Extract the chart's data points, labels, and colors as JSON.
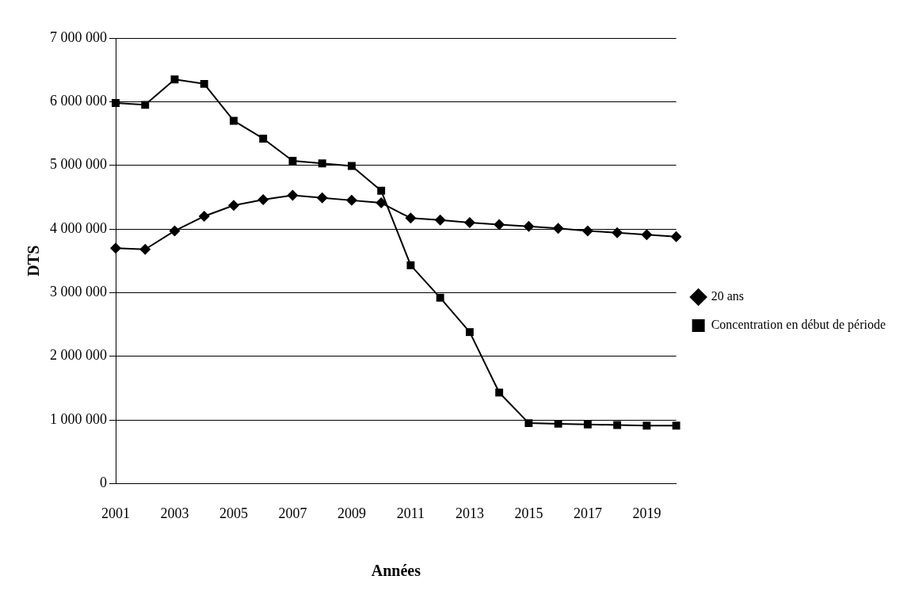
{
  "chart_data": {
    "type": "line",
    "xlabel": "Années",
    "ylabel": "DTS",
    "categories": [
      "2001",
      null,
      "2003",
      null,
      "2005",
      null,
      "2007",
      null,
      "2009",
      null,
      "2011",
      null,
      "2013",
      null,
      "2015",
      null,
      "2017",
      null,
      "2019",
      null
    ],
    "series": [
      {
        "name": "20 ans",
        "color": "#000000",
        "marker": "diamond",
        "values": [
          3700000,
          3680000,
          3970000,
          4200000,
          4370000,
          4460000,
          4530000,
          4490000,
          4450000,
          4410000,
          4170000,
          4140000,
          4100000,
          4070000,
          4040000,
          4010000,
          3970000,
          3940000,
          3910000,
          3880000
        ]
      },
      {
        "name": "Concentration en début de période",
        "color": "#000000",
        "marker": "square",
        "values": [
          5980000,
          5950000,
          6350000,
          6280000,
          5700000,
          5420000,
          5070000,
          5030000,
          4990000,
          4600000,
          3430000,
          2920000,
          2380000,
          1430000,
          950000,
          940000,
          930000,
          920000,
          910000,
          910000
        ]
      }
    ],
    "ylim": [
      0,
      7000000
    ],
    "yticks": [
      {
        "value": 0,
        "label": "0"
      },
      {
        "value": 1000000,
        "label": "1 000 000"
      },
      {
        "value": 2000000,
        "label": "2 000 000"
      },
      {
        "value": 3000000,
        "label": "3 000 000"
      },
      {
        "value": 4000000,
        "label": "4 000 000"
      },
      {
        "value": 5000000,
        "label": "5 000 000"
      },
      {
        "value": 6000000,
        "label": "6 000 000"
      },
      {
        "value": 7000000,
        "label": "7 000 000"
      }
    ],
    "grid": "y",
    "legend": "right",
    "line_style": "solid"
  }
}
